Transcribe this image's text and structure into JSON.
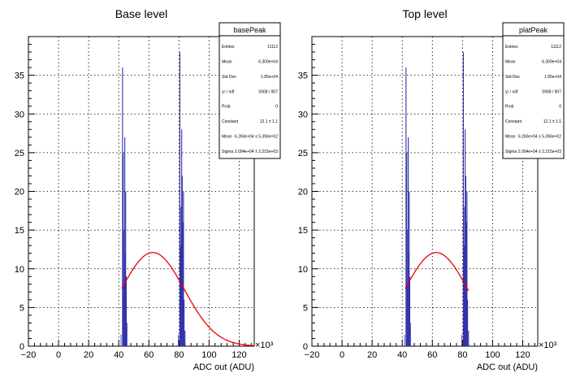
{
  "chart_data": [
    {
      "type": "histogram",
      "title": "Base level",
      "xlabel": "ADC out (ADU)",
      "x_multiplier": "×10³",
      "xlim": [
        -20,
        130
      ],
      "ylim": [
        0,
        40
      ],
      "grid": true,
      "xticks": [
        "−20",
        "0",
        "20",
        "40",
        "60",
        "80",
        "100",
        "120"
      ],
      "yticks": [
        "0",
        "5",
        "10",
        "15",
        "20",
        "25",
        "30",
        "35"
      ],
      "stats": {
        "name": "basePeak",
        "rows": [
          {
            "label": "Entries",
            "value": "11112"
          },
          {
            "label": "Mean",
            "value": "6.309e+04"
          },
          {
            "label": "Std Dev",
            "value": "1.95e+04"
          },
          {
            "label": "χ² / ndf",
            "value": "5908 / 907"
          },
          {
            "label": "Prob",
            "value": "0"
          },
          {
            "label": "Constant",
            "value": "12.1 ± 1.1"
          },
          {
            "label": "Mean",
            "value": "6.260e+04 ± 5.396e+02"
          },
          {
            "label": "Sigma",
            "value": "2.094e+04 ± 2.215e+03"
          }
        ]
      },
      "bars": [
        {
          "x": 42.5,
          "y": 36
        },
        {
          "x": 43.0,
          "y": 25
        },
        {
          "x": 43.3,
          "y": 15
        },
        {
          "x": 43.6,
          "y": 8
        },
        {
          "x": 44.0,
          "y": 27
        },
        {
          "x": 44.3,
          "y": 12
        },
        {
          "x": 44.6,
          "y": 20
        },
        {
          "x": 45.0,
          "y": 9
        },
        {
          "x": 45.4,
          "y": 3
        },
        {
          "x": 80.6,
          "y": 38
        },
        {
          "x": 81.0,
          "y": 13
        },
        {
          "x": 81.4,
          "y": 18
        },
        {
          "x": 81.8,
          "y": 28
        },
        {
          "x": 82.2,
          "y": 22
        },
        {
          "x": 82.6,
          "y": 16
        },
        {
          "x": 83.0,
          "y": 20
        },
        {
          "x": 83.4,
          "y": 6
        },
        {
          "x": 84.0,
          "y": 2
        }
      ],
      "fit": {
        "constant": 12.1,
        "mean": 62.6,
        "sigma": 20.94,
        "range": [
          42,
          130
        ],
        "color": "#ee0000"
      },
      "bar_color": "#3333aa"
    },
    {
      "type": "histogram",
      "title": "Top level",
      "xlabel": "ADC out (ADU)",
      "x_multiplier": "×10³",
      "xlim": [
        -20,
        130
      ],
      "ylim": [
        0,
        40
      ],
      "grid": true,
      "xticks": [
        "−20",
        "0",
        "20",
        "40",
        "60",
        "80",
        "100",
        "120"
      ],
      "yticks": [
        "0",
        "5",
        "10",
        "15",
        "20",
        "25",
        "30",
        "35"
      ],
      "stats": {
        "name": "platPeak",
        "rows": [
          {
            "label": "Entries",
            "value": "11112"
          },
          {
            "label": "Mean",
            "value": "6.309e+04"
          },
          {
            "label": "Std Dev",
            "value": "1.95e+04"
          },
          {
            "label": "χ² / ndf",
            "value": "5908 / 907"
          },
          {
            "label": "Prob",
            "value": "0"
          },
          {
            "label": "Constant",
            "value": "12.1 ± 1.1"
          },
          {
            "label": "Mean",
            "value": "6.260e+04 ± 5.396e+02"
          },
          {
            "label": "Sigma",
            "value": "2.094e+04 ± 2.215e+03"
          }
        ]
      },
      "bars": [
        {
          "x": 42.5,
          "y": 36
        },
        {
          "x": 43.0,
          "y": 25
        },
        {
          "x": 43.3,
          "y": 15
        },
        {
          "x": 43.6,
          "y": 8
        },
        {
          "x": 44.0,
          "y": 27
        },
        {
          "x": 44.3,
          "y": 12
        },
        {
          "x": 44.6,
          "y": 20
        },
        {
          "x": 45.0,
          "y": 9
        },
        {
          "x": 45.4,
          "y": 3
        },
        {
          "x": 80.6,
          "y": 38
        },
        {
          "x": 81.0,
          "y": 13
        },
        {
          "x": 81.4,
          "y": 18
        },
        {
          "x": 81.8,
          "y": 28
        },
        {
          "x": 82.2,
          "y": 22
        },
        {
          "x": 82.6,
          "y": 16
        },
        {
          "x": 83.0,
          "y": 20
        },
        {
          "x": 83.4,
          "y": 6
        },
        {
          "x": 84.0,
          "y": 2
        }
      ],
      "fit": {
        "constant": 12.1,
        "mean": 62.6,
        "sigma": 20.94,
        "range": [
          42,
          84
        ],
        "color": "#ee0000"
      },
      "bar_color": "#3333aa"
    }
  ]
}
